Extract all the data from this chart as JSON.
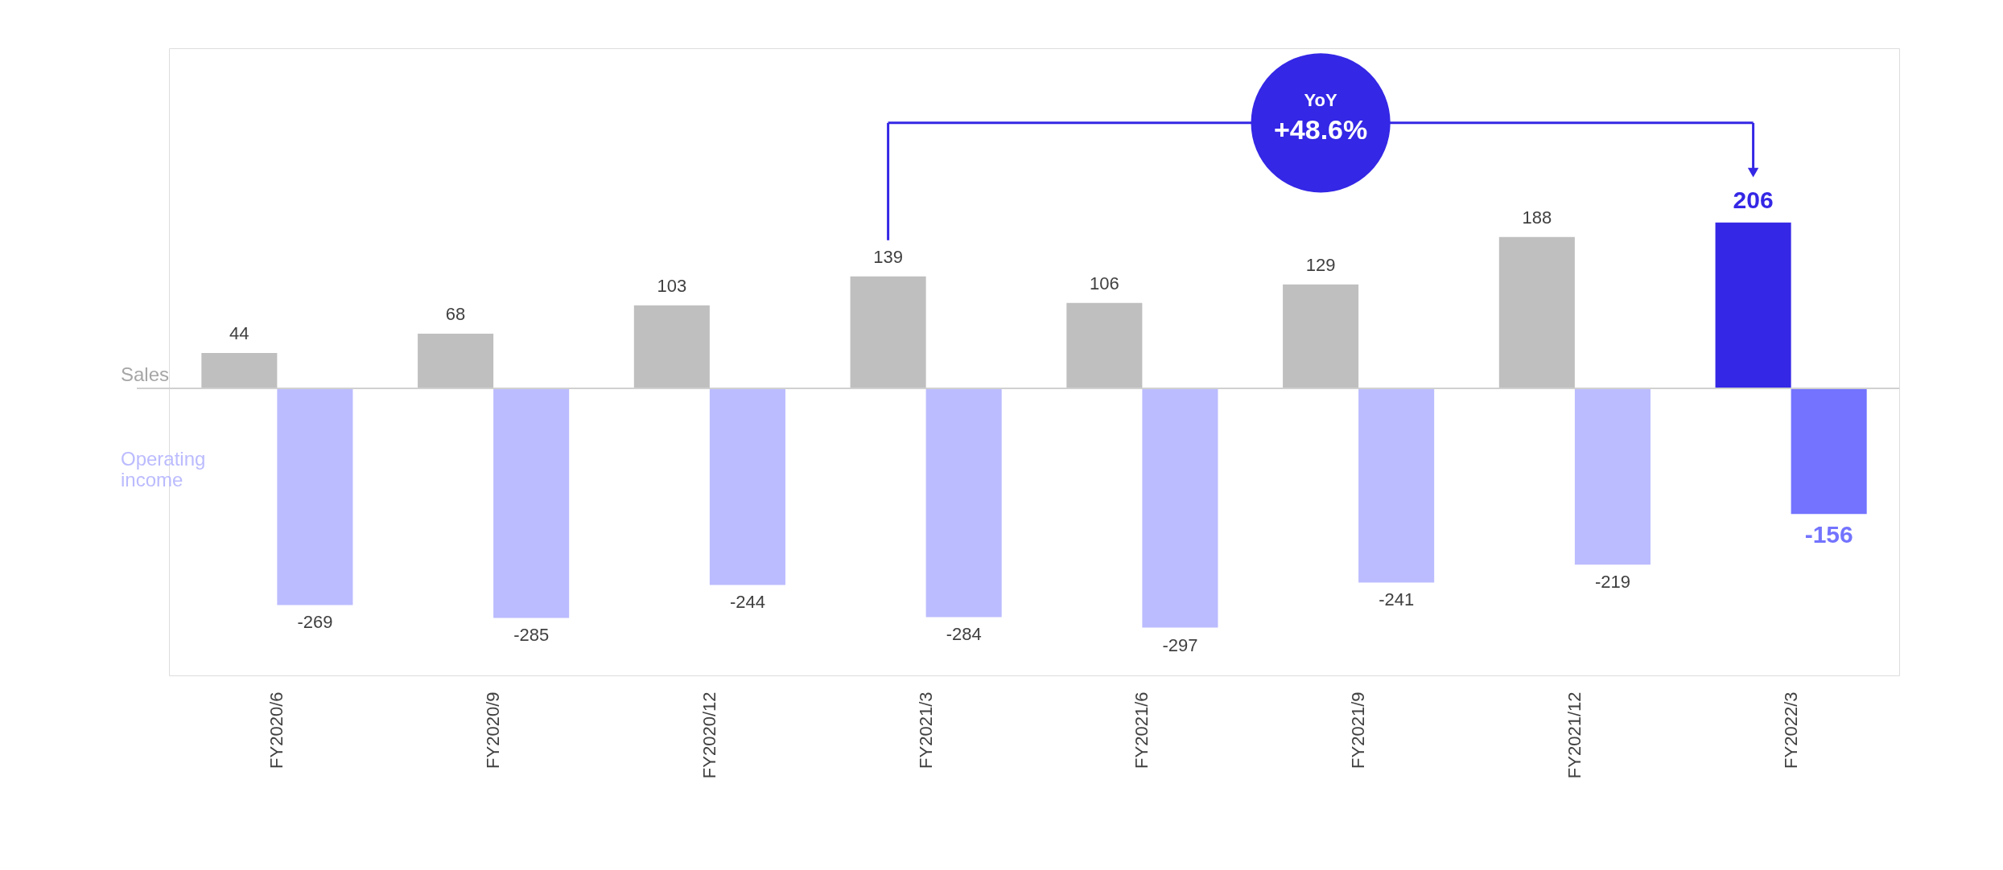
{
  "chart_data": {
    "type": "bar",
    "categories": [
      "FY2020/6",
      "FY2020/9",
      "FY2020/12",
      "FY2021/3",
      "FY2021/6",
      "FY2021/9",
      "FY2021/12",
      "FY2022/3"
    ],
    "series": [
      {
        "name": "Sales",
        "color": "#bfbfbf",
        "colors": [
          "#bfbfbf",
          "#bfbfbf",
          "#bfbfbf",
          "#bfbfbf",
          "#bfbfbf",
          "#bfbfbf",
          "#bfbfbf",
          "#3427e5"
        ],
        "values": [
          44,
          68,
          103,
          139,
          106,
          129,
          188,
          206
        ]
      },
      {
        "name": "Operating income",
        "color": "#bbbbff",
        "colors": [
          "#bbbbff",
          "#bbbbff",
          "#bbbbff",
          "#bbbbff",
          "#bbbbff",
          "#bbbbff",
          "#bbbbff",
          "#7373ff"
        ],
        "values": [
          -269,
          -285,
          -244,
          -284,
          -297,
          -241,
          -219,
          -156
        ]
      }
    ],
    "data_labels": true,
    "tick_labels": "x",
    "legend": false,
    "grid": false,
    "annotations": [
      "YoY",
      "+48.6%"
    ]
  }
}
